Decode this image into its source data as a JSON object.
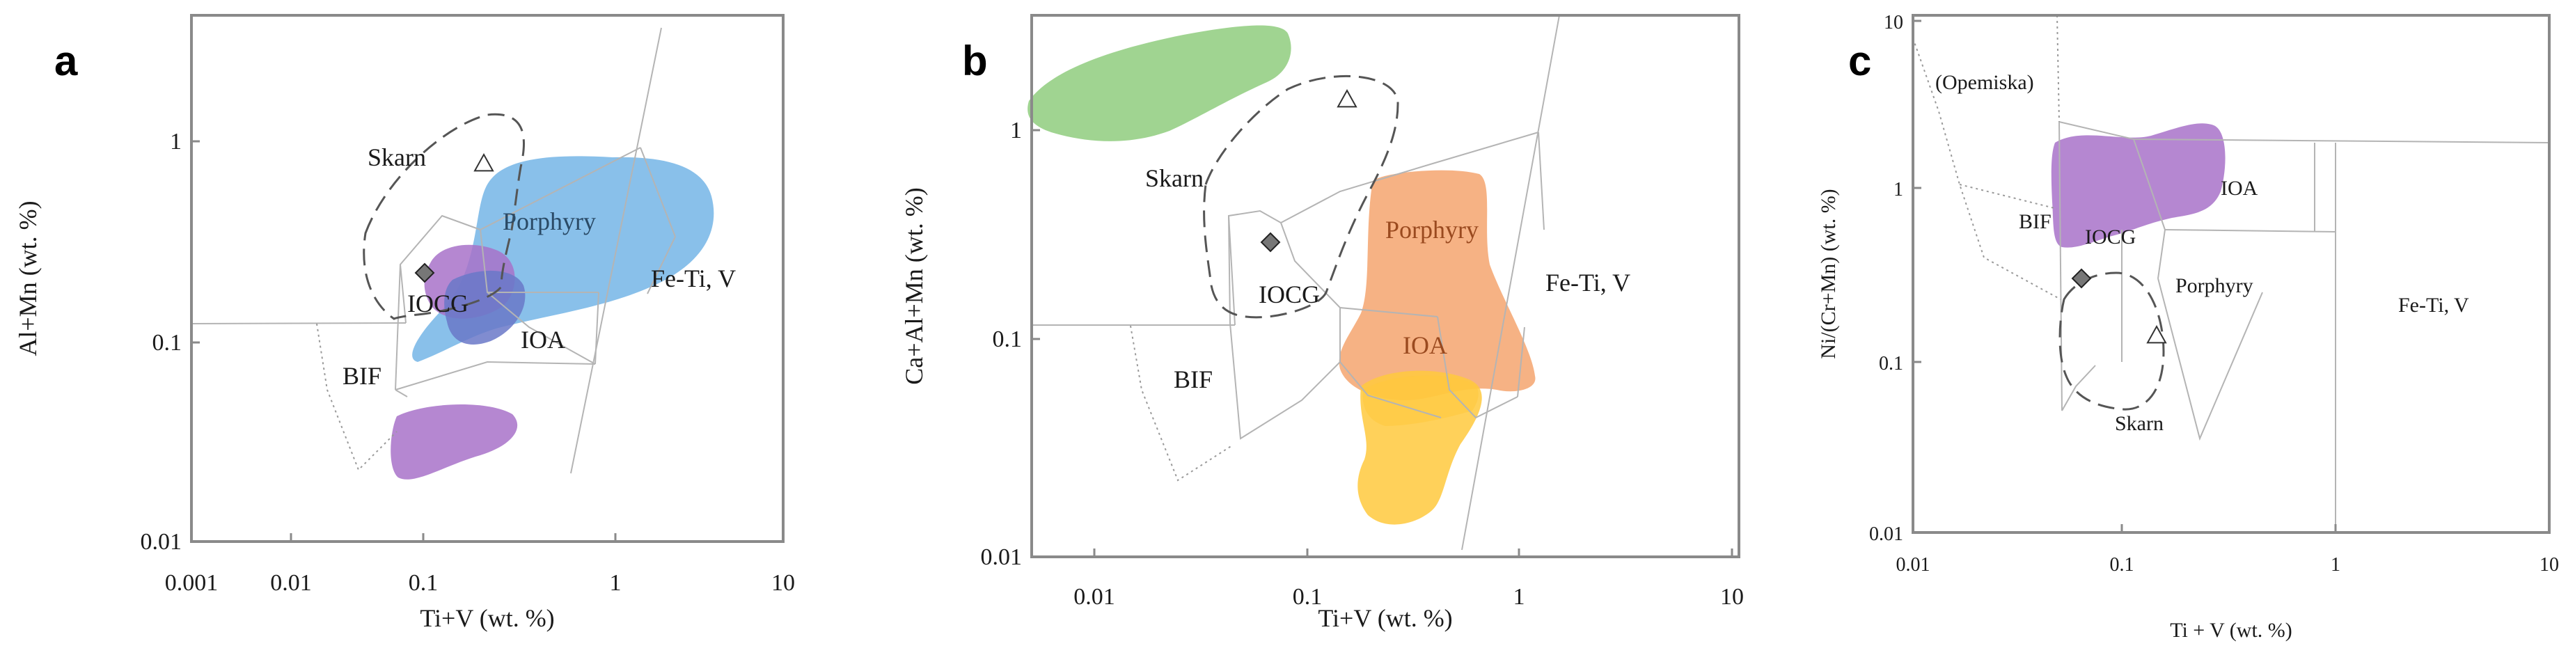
{
  "chart_data": [
    {
      "type": "scatter",
      "panel_label": "a",
      "xlabel": "Ti+V (wt. %)",
      "ylabel": "Al+Mn (wt. %)",
      "xscale": "log",
      "yscale": "log",
      "xlim": [
        0.001,
        10
      ],
      "ylim": [
        0.01,
        4
      ],
      "x_ticks": [
        "0.001",
        "0.01",
        "0.1",
        "1",
        "10"
      ],
      "y_ticks": [
        "0.01",
        "0.1",
        "1"
      ],
      "fields": [
        "Skarn",
        "Porphyry",
        "Fe-Ti, V",
        "IOCG",
        "IOA",
        "BIF"
      ],
      "points": [
        {
          "symbol": "triangle",
          "x": 0.15,
          "y": 0.78
        },
        {
          "symbol": "diamond",
          "x": 0.065,
          "y": 0.22
        }
      ],
      "colors": {
        "porphyry_fill": "#74b5e6",
        "iocg_fill": "#a872c9",
        "overlap_fill": "#6a78c8",
        "frame": "#8a8a8a",
        "line": "#b4b4b4"
      }
    },
    {
      "type": "scatter",
      "panel_label": "b",
      "xlabel": "Ti+V (wt. %)",
      "ylabel": "Ca+Al+Mn (wt. %)",
      "xscale": "log",
      "yscale": "log",
      "xlim": [
        0.004,
        10
      ],
      "ylim": [
        0.01,
        3.5
      ],
      "x_ticks": [
        "0.01",
        "0.1",
        "1",
        "10"
      ],
      "y_ticks": [
        "0.01",
        "0.1",
        "1"
      ],
      "fields": [
        "Skarn",
        "Porphyry",
        "Fe-Ti, V",
        "IOCG",
        "IOA",
        "BIF"
      ],
      "points": [
        {
          "symbol": "triangle",
          "x": 0.16,
          "y": 1.35
        },
        {
          "symbol": "diamond",
          "x": 0.07,
          "y": 0.28
        }
      ],
      "colors": {
        "green_fill": "#8fcc7e",
        "porphyry_fill": "#f5a56e",
        "ioa_fill": "#ffc93d",
        "label_brown": "#9a4a1f",
        "frame": "#8a8a8a",
        "line": "#b4b4b4"
      }
    },
    {
      "type": "scatter",
      "panel_label": "c",
      "xlabel": "Ti + V (wt. %)",
      "ylabel": "Ni/(Cr+Mn) (wt. %)",
      "xscale": "log",
      "yscale": "log",
      "xlim": [
        0.01,
        10
      ],
      "ylim": [
        0.01,
        10
      ],
      "x_ticks": [
        "0.01",
        "0.1",
        "1",
        "10"
      ],
      "y_ticks": [
        "0.01",
        "0.1",
        "1",
        "10"
      ],
      "fields": [
        "(Opemiska)",
        "BIF",
        "IOCG",
        "IOA",
        "Porphyry",
        "Skarn",
        "Fe-Ti, V"
      ],
      "points": [
        {
          "symbol": "triangle",
          "x": 0.15,
          "y": 0.15
        },
        {
          "symbol": "diamond",
          "x": 0.062,
          "y": 0.3
        }
      ],
      "colors": {
        "iocg_fill": "#a872c9",
        "frame": "#8a8a8a",
        "line": "#b4b4b4"
      }
    }
  ]
}
